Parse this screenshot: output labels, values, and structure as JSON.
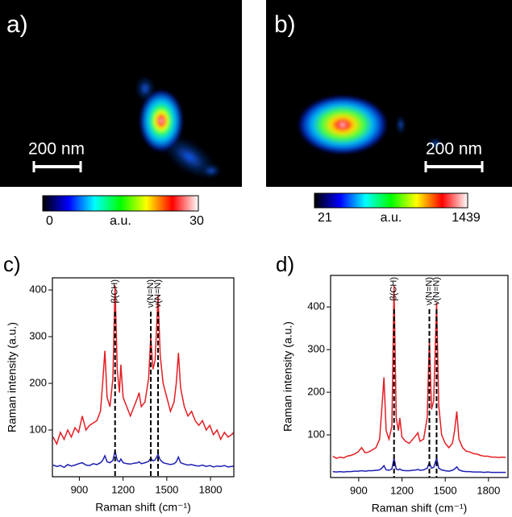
{
  "chart_data": [
    {
      "type": "heatmap",
      "label": "a)",
      "scale_bar": "200 nm",
      "colorbar": {
        "range": [
          0,
          30
        ],
        "unit": "a.u."
      },
      "colormap": [
        "#000000",
        "#0000ff",
        "#00ffff",
        "#00ff00",
        "#ffff00",
        "#ff0000",
        "#ffffff"
      ]
    },
    {
      "type": "heatmap",
      "label": "b)",
      "scale_bar": "200 nm",
      "colorbar": {
        "range": [
          21,
          1439
        ],
        "unit": "a.u."
      },
      "colormap": [
        "#000000",
        "#0000ff",
        "#00ffff",
        "#00ff00",
        "#ffff00",
        "#ff0000",
        "#ffffff"
      ]
    },
    {
      "type": "line",
      "label": "c)",
      "x_label": "Raman shift (cm⁻¹)",
      "y_label": "Raman intensity (a.u.)",
      "xlim": [
        715,
        1960
      ],
      "ylim": [
        0,
        426
      ],
      "xticks": [
        900,
        1200,
        1500,
        1800
      ],
      "yticks": [
        100,
        200,
        300,
        400
      ],
      "annotations": [
        {
          "x": 1145,
          "label": "β(CH)"
        },
        {
          "x": 1390,
          "label": "ν(N=N)"
        },
        {
          "x": 1440,
          "label": "ν(N=N)"
        }
      ],
      "x": [
        720,
        745,
        770,
        795,
        820,
        845,
        870,
        895,
        920,
        945,
        970,
        995,
        1020,
        1045,
        1060,
        1075,
        1090,
        1110,
        1130,
        1145,
        1160,
        1175,
        1185,
        1200,
        1225,
        1250,
        1275,
        1300,
        1310,
        1325,
        1350,
        1375,
        1390,
        1405,
        1420,
        1440,
        1455,
        1475,
        1500,
        1525,
        1550,
        1565,
        1580,
        1595,
        1620,
        1645,
        1670,
        1695,
        1720,
        1745,
        1770,
        1795,
        1820,
        1845,
        1870,
        1895,
        1920,
        1945,
        1960
      ],
      "series": [
        {
          "color": "#e31e24",
          "values": [
            85,
            70,
            95,
            80,
            100,
            85,
            105,
            95,
            130,
            100,
            110,
            115,
            120,
            140,
            200,
            270,
            170,
            150,
            210,
            410,
            230,
            180,
            240,
            170,
            150,
            130,
            150,
            170,
            180,
            150,
            160,
            210,
            300,
            230,
            250,
            390,
            260,
            200,
            170,
            140,
            160,
            200,
            265,
            190,
            150,
            130,
            140,
            120,
            110,
            120,
            100,
            110,
            90,
            100,
            80,
            95,
            85,
            90,
            95
          ]
        },
        {
          "color": "#1f1fb4",
          "values": [
            25,
            22,
            24,
            20,
            26,
            23,
            25,
            28,
            30,
            25,
            24,
            28,
            26,
            30,
            35,
            45,
            32,
            30,
            35,
            55,
            35,
            32,
            38,
            30,
            28,
            27,
            29,
            30,
            32,
            28,
            30,
            33,
            40,
            34,
            36,
            48,
            36,
            30,
            28,
            26,
            28,
            32,
            42,
            30,
            27,
            25,
            26,
            24,
            23,
            25,
            22,
            24,
            21,
            23,
            22,
            24,
            21,
            22,
            23
          ]
        }
      ]
    },
    {
      "type": "line",
      "label": "d)",
      "x_label": "Raman shift (cm⁻¹)",
      "y_label": "Raman intensity (a.u.)",
      "xlim": [
        705,
        1935
      ],
      "ylim": [
        0,
        474
      ],
      "xticks": [
        900,
        1200,
        1500,
        1800
      ],
      "yticks": [
        100,
        200,
        300,
        400
      ],
      "annotations": [
        {
          "x": 1145,
          "label": "β(CH)"
        },
        {
          "x": 1390,
          "label": "ν(N=N)"
        },
        {
          "x": 1440,
          "label": "ν(N=N)"
        }
      ],
      "x": [
        720,
        745,
        770,
        795,
        820,
        845,
        870,
        895,
        920,
        945,
        970,
        995,
        1020,
        1045,
        1060,
        1075,
        1090,
        1110,
        1130,
        1145,
        1160,
        1175,
        1185,
        1200,
        1225,
        1250,
        1275,
        1300,
        1310,
        1325,
        1350,
        1375,
        1390,
        1405,
        1420,
        1440,
        1455,
        1475,
        1500,
        1525,
        1550,
        1565,
        1580,
        1595,
        1620,
        1645,
        1670,
        1695,
        1720,
        1745,
        1770,
        1795,
        1820,
        1845,
        1870,
        1895,
        1920
      ],
      "series": [
        {
          "color": "#e31e24",
          "values": [
            50,
            45,
            48,
            46,
            50,
            52,
            55,
            60,
            70,
            58,
            60,
            65,
            70,
            90,
            160,
            235,
            110,
            90,
            120,
            450,
            140,
            110,
            140,
            95,
            85,
            80,
            90,
            100,
            105,
            85,
            90,
            140,
            325,
            160,
            180,
            410,
            170,
            100,
            80,
            70,
            80,
            110,
            155,
            90,
            70,
            62,
            60,
            56,
            55,
            52,
            50,
            50,
            48,
            48,
            47,
            48,
            47
          ]
        },
        {
          "color": "#1f1fb4",
          "values": [
            14,
            13,
            14,
            13,
            14,
            14,
            15,
            15,
            16,
            15,
            16,
            16,
            17,
            18,
            22,
            28,
            18,
            17,
            20,
            45,
            20,
            18,
            20,
            17,
            16,
            16,
            17,
            18,
            19,
            17,
            18,
            22,
            35,
            22,
            24,
            45,
            22,
            18,
            16,
            15,
            17,
            20,
            25,
            18,
            15,
            14,
            14,
            13,
            13,
            13,
            12,
            13,
            12,
            12,
            12,
            12,
            12
          ]
        }
      ]
    }
  ]
}
